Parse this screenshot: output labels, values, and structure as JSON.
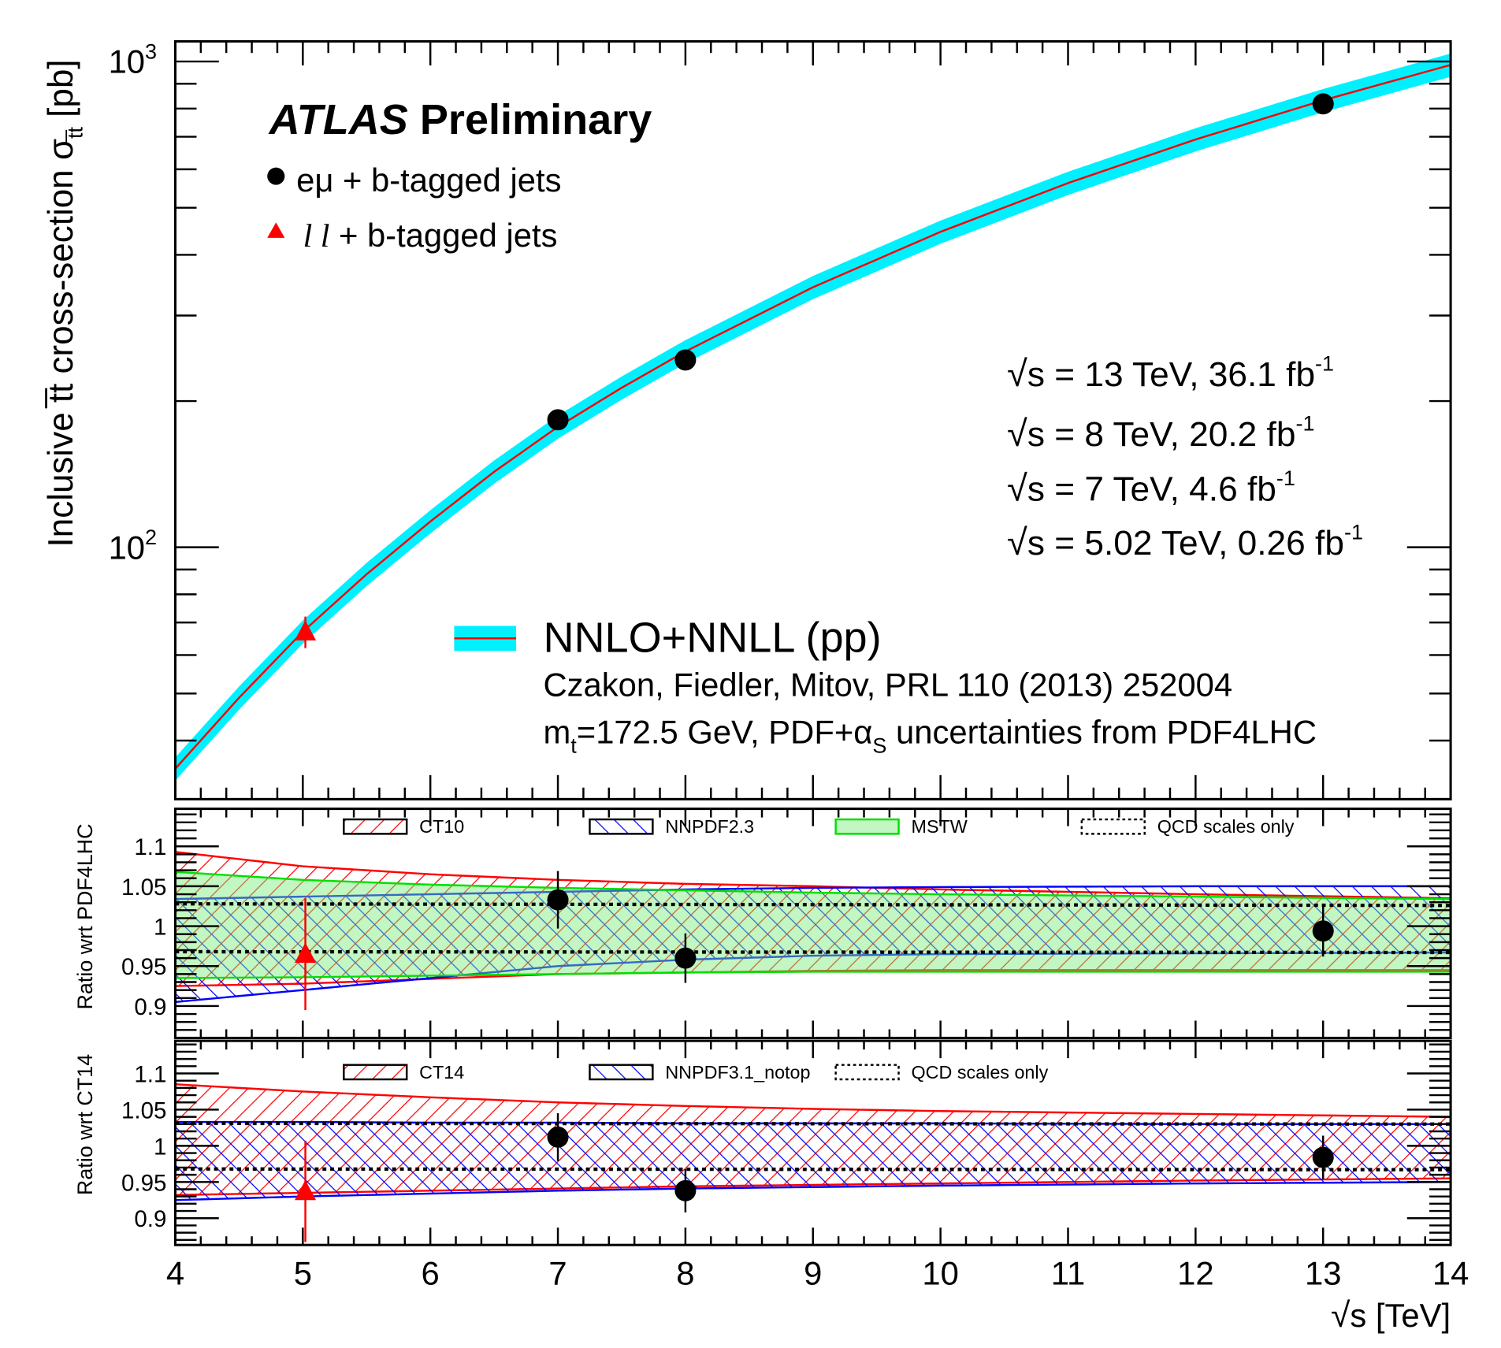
{
  "chart_data": [
    {
      "type": "scatter",
      "panel": "main",
      "ylabel": {
        "main": "Inclusive t̅t cross-section σ",
        "sub": "t̅t",
        "unit": " [pb]"
      },
      "xlim": [
        4,
        14
      ],
      "ylim": [
        30.3,
        1100
      ],
      "yscale": "log",
      "ytick_labels": [
        {
          "value": 100,
          "base": "10",
          "exp": "2"
        },
        {
          "value": 1000,
          "base": "10",
          "exp": "3"
        }
      ],
      "title": {
        "atlas": "ATLAS",
        "prelim": "Preliminary"
      },
      "legend": [
        {
          "label": "eμ + b-tagged jets",
          "marker": "circle",
          "color": "#000000"
        },
        {
          "label_italic": "l l",
          "label": " + b-tagged jets",
          "marker": "triangle",
          "color": "#ff0000"
        }
      ],
      "energy_labels": [
        {
          "lead": "s = 13 TeV, 36.1 fb",
          "exp": "-1"
        },
        {
          "lead": "s = 8 TeV, 20.2 fb",
          "exp": "-1"
        },
        {
          "lead": "s = 7 TeV, 4.6 fb",
          "exp": "-1"
        },
        {
          "lead": "s = 5.02 TeV, 0.26 fb",
          "exp": "-1"
        }
      ],
      "theory_legend": {
        "label": "NNLO+NNLL (pp)",
        "citation": "Czakon, Fiedler, Mitov, PRL 110 (2013) 252004",
        "mt_prefix": "m",
        "mt_sub": "t",
        "mt_mid": "=172.5 GeV, PDF+α",
        "mt_sub2": "S",
        "mt_suffix": " uncertainties from PDF4LHC",
        "band_color": "#00f0ff",
        "line_color": "#ff0000"
      },
      "theory": {
        "x": [
          4,
          4.5,
          5,
          5.5,
          6,
          6.5,
          7,
          7.5,
          8,
          9,
          10,
          11,
          12,
          13,
          14
        ],
        "y": [
          35,
          49,
          67,
          88,
          113,
          143,
          177,
          213,
          253,
          343,
          446,
          562,
          691,
          832,
          984
        ],
        "rel_unc": 0.055
      },
      "series": [
        {
          "name": "eμ + b-tagged jets",
          "marker": "circle",
          "x": [
            7,
            8,
            13
          ],
          "y": [
            183,
            243,
            818
          ]
        },
        {
          "name": "l l + b-tagged jets",
          "marker": "triangle",
          "x": [
            5.02
          ],
          "y": [
            67
          ],
          "err": [
            5
          ]
        }
      ]
    },
    {
      "type": "area",
      "panel": "ratio1",
      "ylabel": "Ratio wrt PDF4LHC",
      "xlim": [
        4,
        14
      ],
      "ylim": [
        0.86,
        1.147
      ],
      "ytick_labels": [
        "0.9",
        "0.95",
        "1",
        "1.05",
        "1.1"
      ],
      "legend": [
        "CT10",
        "NNPDF2.3",
        "MSTW",
        "QCD scales only"
      ],
      "bands": [
        {
          "name": "CT10",
          "style": "hatch-red",
          "x": [
            4,
            5,
            6,
            7,
            8,
            9,
            10,
            12,
            14
          ],
          "upper": [
            1.093,
            1.075,
            1.065,
            1.058,
            1.053,
            1.05,
            1.046,
            1.04,
            1.035
          ],
          "lower": [
            0.925,
            0.928,
            0.934,
            0.94,
            0.942,
            0.944,
            0.945,
            0.945,
            0.945
          ]
        },
        {
          "name": "NNPDF2.3",
          "style": "hatch-blue",
          "x": [
            4,
            5,
            6,
            7,
            8,
            9,
            10,
            12,
            14
          ],
          "upper": [
            1.034,
            1.037,
            1.04,
            1.043,
            1.046,
            1.048,
            1.049,
            1.05,
            1.05
          ],
          "lower": [
            0.905,
            0.92,
            0.935,
            0.95,
            0.958,
            0.963,
            0.965,
            0.966,
            0.967
          ]
        },
        {
          "name": "MSTW",
          "style": "fill-green",
          "x": [
            4,
            5,
            6,
            7,
            8,
            9,
            10,
            12,
            14
          ],
          "upper": [
            1.068,
            1.058,
            1.052,
            1.048,
            1.045,
            1.042,
            1.04,
            1.037,
            1.034
          ],
          "lower": [
            0.935,
            0.936,
            0.938,
            0.94,
            0.942,
            0.943,
            0.943,
            0.943,
            0.943
          ]
        },
        {
          "name": "QCD scales only",
          "style": "dotted",
          "x": [
            4,
            14
          ],
          "upper": [
            1.028,
            1.026
          ],
          "lower": [
            0.968,
            0.967
          ]
        }
      ],
      "series": [
        {
          "marker": "circle",
          "x": [
            7,
            8,
            13
          ],
          "y": [
            1.033,
            0.96,
            0.994
          ],
          "err": [
            0.036,
            0.031,
            0.032
          ]
        },
        {
          "marker": "triangle",
          "x": [
            5.02
          ],
          "y": [
            0.965
          ],
          "err": [
            0.07
          ]
        }
      ]
    },
    {
      "type": "area",
      "panel": "ratio2",
      "ylabel": "Ratio wrt CT14",
      "xlabel_lead": "s [TeV]",
      "xlim": [
        4,
        14
      ],
      "ylim": [
        0.863,
        1.145
      ],
      "xtick_labels": [
        "4",
        "5",
        "6",
        "7",
        "8",
        "9",
        "10",
        "11",
        "12",
        "13",
        "14"
      ],
      "ytick_labels": [
        "0.9",
        "0.95",
        "1",
        "1.05",
        "1.1"
      ],
      "legend": [
        "CT14",
        "NNPDF3.1_notop",
        "QCD scales only"
      ],
      "bands": [
        {
          "name": "CT14",
          "style": "hatch-red",
          "x": [
            4,
            5,
            6,
            7,
            8,
            9,
            10,
            12,
            14
          ],
          "upper": [
            1.085,
            1.075,
            1.067,
            1.06,
            1.055,
            1.051,
            1.048,
            1.044,
            1.04
          ],
          "lower": [
            0.932,
            0.935,
            0.938,
            0.941,
            0.944,
            0.946,
            0.948,
            0.952,
            0.955
          ]
        },
        {
          "name": "NNPDF3.1_notop",
          "style": "hatch-blue",
          "x": [
            4,
            5,
            6,
            7,
            8,
            9,
            10,
            12,
            14
          ],
          "upper": [
            1.033,
            1.033,
            1.032,
            1.032,
            1.031,
            1.031,
            1.031,
            1.03,
            1.03
          ],
          "lower": [
            0.925,
            0.93,
            0.934,
            0.938,
            0.941,
            0.943,
            0.945,
            0.948,
            0.95
          ]
        },
        {
          "name": "QCD scales only",
          "style": "dotted",
          "x": [
            4,
            14
          ],
          "upper": [
            1.031,
            1.03
          ],
          "lower": [
            0.968,
            0.967
          ]
        }
      ],
      "series": [
        {
          "marker": "circle",
          "x": [
            7,
            8,
            13
          ],
          "y": [
            1.012,
            0.938,
            0.984
          ],
          "err": [
            0.033,
            0.03,
            0.03
          ]
        },
        {
          "marker": "triangle",
          "x": [
            5.02
          ],
          "y": [
            0.937
          ],
          "err": [
            0.07
          ]
        }
      ]
    }
  ]
}
